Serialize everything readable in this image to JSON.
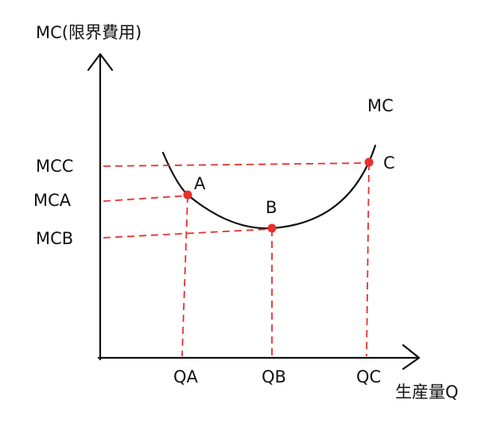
{
  "axes": {
    "y_label": "MC(限界費用)",
    "x_label": "生産量Q"
  },
  "curve_label": "MC",
  "points": [
    {
      "label": "A",
      "y_label": "MCA",
      "x_label": "QA"
    },
    {
      "label": "B",
      "y_label": "MCB",
      "x_label": "QB"
    },
    {
      "label": "C",
      "y_label": "MCC",
      "x_label": "QC"
    }
  ]
}
